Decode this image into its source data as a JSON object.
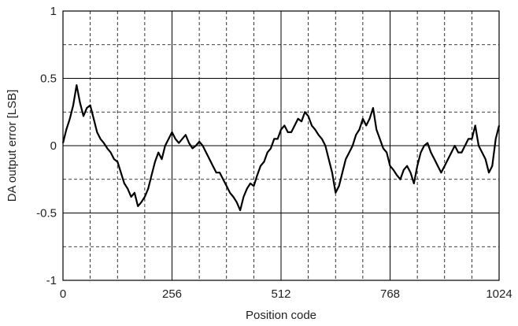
{
  "chart_data": {
    "type": "line",
    "xlabel": "Position code",
    "ylabel": "DA output error [LSB]",
    "xlim": [
      0,
      1024
    ],
    "ylim": [
      -1,
      1
    ],
    "xticks": [
      {
        "value": 0,
        "label": "0"
      },
      {
        "value": 256,
        "label": "256"
      },
      {
        "value": 512,
        "label": "512"
      },
      {
        "value": 768,
        "label": "768"
      },
      {
        "value": 1024,
        "label": "1024"
      }
    ],
    "yticks": [
      {
        "value": 1,
        "label": "1"
      },
      {
        "value": 0.5,
        "label": "0.5"
      },
      {
        "value": 0,
        "label": "0"
      },
      {
        "value": -0.5,
        "label": "-0.5"
      },
      {
        "value": -1,
        "label": "-1"
      }
    ],
    "grid": {
      "major_x": [
        256,
        512,
        768
      ],
      "major_y": [
        -0.5,
        0,
        0.5
      ],
      "minor_x": [
        64,
        128,
        192,
        320,
        384,
        448,
        576,
        640,
        704,
        832,
        896,
        960
      ],
      "minor_y": [
        -0.75,
        -0.25,
        0.25,
        0.75
      ]
    },
    "line_color": "#000000",
    "series": [
      {
        "x": [
          0,
          8,
          16,
          24,
          32,
          40,
          48,
          56,
          64,
          72,
          80,
          88,
          96,
          104,
          112,
          120,
          128,
          136,
          144,
          152,
          160,
          168,
          176,
          184,
          192,
          200,
          208,
          216,
          224,
          232,
          240,
          248,
          256,
          264,
          272,
          280,
          288,
          296,
          304,
          312,
          320,
          328,
          336,
          344,
          352,
          360,
          368,
          376,
          384,
          392,
          400,
          408,
          416,
          424,
          432,
          440,
          448,
          456,
          464,
          472,
          480,
          488,
          496,
          504,
          512,
          520,
          528,
          536,
          544,
          552,
          560,
          568,
          576,
          584,
          592,
          600,
          608,
          616,
          624,
          632,
          640,
          648,
          656,
          664,
          672,
          680,
          688,
          696,
          704,
          712,
          720,
          728,
          736,
          744,
          752,
          760,
          768,
          776,
          784,
          792,
          800,
          808,
          816,
          824,
          832,
          840,
          848,
          856,
          864,
          872,
          880,
          888,
          896,
          904,
          912,
          920,
          928,
          936,
          944,
          952,
          960,
          968,
          976,
          984,
          992,
          1000,
          1008,
          1016,
          1024
        ],
        "y": [
          0.02,
          0.12,
          0.2,
          0.3,
          0.45,
          0.32,
          0.22,
          0.28,
          0.3,
          0.2,
          0.1,
          0.05,
          0.02,
          -0.02,
          -0.05,
          -0.1,
          -0.12,
          -0.2,
          -0.28,
          -0.32,
          -0.38,
          -0.35,
          -0.45,
          -0.42,
          -0.38,
          -0.32,
          -0.22,
          -0.12,
          -0.05,
          -0.1,
          0.0,
          0.05,
          0.1,
          0.05,
          0.02,
          0.05,
          0.08,
          0.02,
          -0.02,
          0.0,
          0.03,
          0.0,
          -0.05,
          -0.1,
          -0.15,
          -0.2,
          -0.2,
          -0.25,
          -0.3,
          -0.35,
          -0.38,
          -0.42,
          -0.48,
          -0.38,
          -0.32,
          -0.28,
          -0.3,
          -0.22,
          -0.15,
          -0.12,
          -0.05,
          -0.02,
          0.05,
          0.05,
          0.12,
          0.15,
          0.1,
          0.1,
          0.15,
          0.2,
          0.18,
          0.25,
          0.22,
          0.15,
          0.12,
          0.08,
          0.05,
          0.0,
          -0.1,
          -0.2,
          -0.35,
          -0.3,
          -0.2,
          -0.1,
          -0.05,
          0.0,
          0.08,
          0.12,
          0.2,
          0.15,
          0.2,
          0.28,
          0.12,
          0.05,
          -0.02,
          -0.05,
          -0.15,
          -0.18,
          -0.22,
          -0.25,
          -0.18,
          -0.15,
          -0.2,
          -0.28,
          -0.15,
          -0.05,
          0.0,
          0.02,
          -0.05,
          -0.1,
          -0.15,
          -0.2,
          -0.15,
          -0.1,
          -0.05,
          0.0,
          -0.05,
          -0.05,
          0.0,
          0.05,
          0.05,
          0.15,
          0.0,
          -0.05,
          -0.1,
          -0.2,
          -0.15,
          0.05,
          0.15
        ]
      }
    ]
  }
}
